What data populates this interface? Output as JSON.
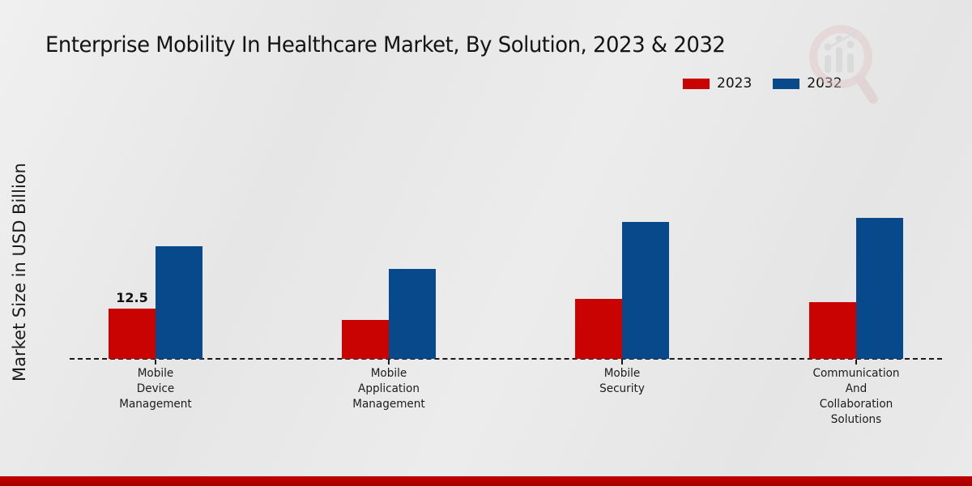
{
  "title": "Enterprise Mobility In Healthcare Market, By Solution, 2023 & 2032",
  "y_axis_label": "Market Size in USD Billion",
  "legend": {
    "position": "top-right",
    "items": [
      {
        "label": "2023",
        "color": "#c90202"
      },
      {
        "label": "2032",
        "color": "#08498c"
      }
    ]
  },
  "watermark_icon": "magnifier-bar-chart-logo",
  "colors": {
    "series_2023": "#c90202",
    "series_2032": "#08498c",
    "footer_band": "#bf0101",
    "axis": "#1a1a1a",
    "background": "#e9e9e9"
  },
  "footer_band_color": "#bf0101",
  "chart_data": {
    "type": "bar",
    "title": "Enterprise Mobility In Healthcare Market, By Solution, 2023 & 2032",
    "xlabel": "",
    "ylabel": "Market Size in USD Billion",
    "ylim": [
      0,
      40
    ],
    "grid": false,
    "baseline_style": "dashed",
    "legend_position": "top-right",
    "categories": [
      "Mobile\nDevice\nManagement",
      "Mobile\nApplication\nManagement",
      "Mobile\nSecurity",
      "Communication\nAnd\nCollaboration\nSolutions"
    ],
    "series": [
      {
        "name": "2023",
        "color": "#c90202",
        "values": [
          12.5,
          9.7,
          14.9,
          14.1
        ],
        "labels": [
          "12.5",
          null,
          null,
          null
        ]
      },
      {
        "name": "2032",
        "color": "#08498c",
        "values": [
          28.0,
          22.4,
          34.1,
          35.1
        ],
        "labels": [
          null,
          null,
          null,
          null
        ]
      }
    ]
  }
}
